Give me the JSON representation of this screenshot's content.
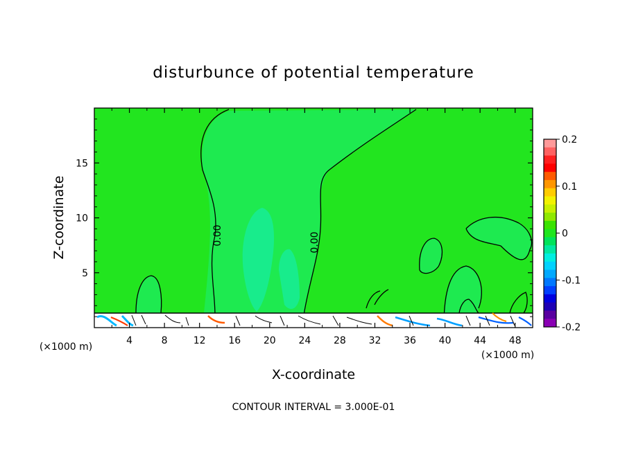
{
  "chart_data": {
    "type": "heatmap",
    "title": "disturbunce of potential temperature",
    "xlabel": "X-coordinate",
    "ylabel": "Z-coordinate",
    "x_unit_label": "(×1000 m)",
    "x_unit_label_right": "(×1000 m)",
    "xlim": [
      0,
      50
    ],
    "ylim": [
      0,
      20
    ],
    "x_ticks": [
      "4",
      "8",
      "12",
      "16",
      "20",
      "24",
      "28",
      "32",
      "36",
      "40",
      "44",
      "48"
    ],
    "y_ticks": [
      "5",
      "10",
      "15"
    ],
    "contour_label": "0.00",
    "contour_interval_text": "CONTOUR INTERVAL = 3.000E-01",
    "colorbar": {
      "range": [
        -0.2,
        0.2
      ],
      "labels": [
        "0.2",
        "0.1",
        "0",
        "-0.1",
        "-0.2"
      ],
      "colors": [
        "#ff9a9a",
        "#ff6262",
        "#ff2020",
        "#ff0000",
        "#ff5a00",
        "#ff9600",
        "#ffcc00",
        "#f2f200",
        "#c8f000",
        "#90e800",
        "#3ae300",
        "#1ee61e",
        "#00e35a",
        "#00e8a0",
        "#00eee0",
        "#00d2ff",
        "#00a8ff",
        "#0078ff",
        "#0040ff",
        "#0000e0",
        "#1e00b4",
        "#5a00a0",
        "#8a00b4"
      ]
    },
    "background_value": 0.0,
    "colors": {
      "field": "#22e51f",
      "slight_negative": "#1eea6a",
      "negative": "#10f0b4"
    }
  }
}
